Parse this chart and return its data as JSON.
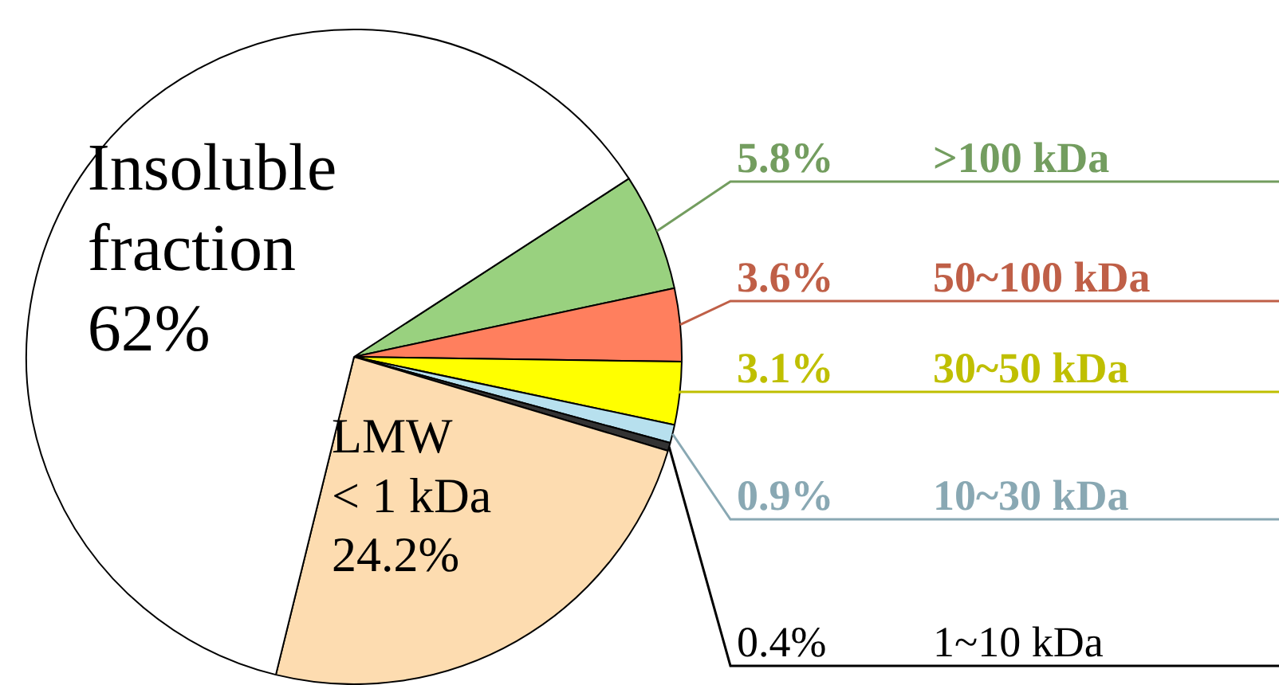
{
  "chart_data": {
    "type": "pie",
    "categories": [
      ">100 kDa",
      "50~100 kDa",
      "30~50 kDa",
      "10~30 kDa",
      "1~10 kDa",
      "LMW < 1 kDa",
      "Insoluble fraction"
    ],
    "values": [
      5.8,
      3.6,
      3.1,
      0.9,
      0.4,
      24.2,
      62
    ],
    "colors": [
      "#99d17f",
      "#ff7f5e",
      "#ffff00",
      "#b7e0ee",
      "#333333",
      "#fddcb0",
      "#ffffff"
    ],
    "value_labels": [
      "5.8%",
      "3.6%",
      "3.1%",
      "0.9%",
      "0.4%",
      "24.2%",
      "62%"
    ],
    "legend": false
  }
}
